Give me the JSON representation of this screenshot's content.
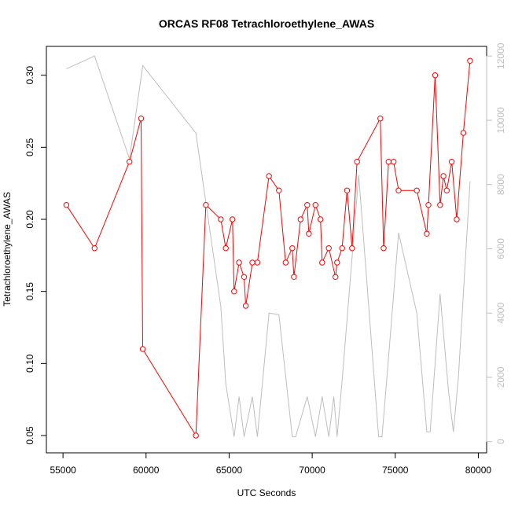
{
  "chart_data": {
    "type": "line",
    "title": "ORCAS RF08 Tetrachloroethylene_AWAS",
    "xlabel": "UTC Seconds",
    "ylabel": "Tetrachloroethylene_AWAS",
    "xlim": [
      54000,
      80500
    ],
    "ylim": [
      0.038,
      0.32
    ],
    "xticks": [
      55000,
      60000,
      65000,
      70000,
      75000,
      80000
    ],
    "xtick_labels": [
      "55000",
      "60000",
      "65000",
      "70000",
      "75000",
      "80000"
    ],
    "yticks": [
      0.05,
      0.1,
      0.15,
      0.2,
      0.25,
      0.3
    ],
    "ytick_labels": [
      "0.05",
      "0.10",
      "0.15",
      "0.20",
      "0.25",
      "0.30"
    ],
    "y2lim": [
      -350,
      12300
    ],
    "y2ticks": [
      0,
      2000,
      4000,
      6000,
      8000,
      10000,
      12000
    ],
    "y2tick_labels": [
      "0",
      "2000",
      "4000",
      "6000",
      "8000",
      "10000",
      "12000"
    ],
    "colors": {
      "primary": "#ff0000",
      "secondary": "#bebebe",
      "axis": "#000000"
    },
    "series": [
      {
        "axis": "left",
        "style": "line+points",
        "x": [
          55200,
          56900,
          59000,
          59700,
          59800,
          63000,
          63600,
          64500,
          64800,
          65200,
          65300,
          65600,
          65900,
          66000,
          66400,
          66700,
          67400,
          68000,
          68400,
          68800,
          68900,
          69300,
          69700,
          69800,
          70200,
          70500,
          70600,
          71000,
          71400,
          71500,
          71800,
          72100,
          72400,
          72700,
          74100,
          74300,
          74600,
          74900,
          75200,
          76300,
          76900,
          77000,
          77400,
          77700,
          77900,
          78100,
          78400,
          78700,
          79100,
          79500
        ],
        "y": [
          0.21,
          0.18,
          0.24,
          0.27,
          0.11,
          0.05,
          0.21,
          0.2,
          0.18,
          0.2,
          0.15,
          0.17,
          0.16,
          0.14,
          0.17,
          0.17,
          0.23,
          0.22,
          0.17,
          0.18,
          0.16,
          0.2,
          0.21,
          0.19,
          0.21,
          0.2,
          0.17,
          0.18,
          0.16,
          0.17,
          0.18,
          0.22,
          0.18,
          0.24,
          0.27,
          0.18,
          0.24,
          0.24,
          0.22,
          0.22,
          0.19,
          0.21,
          0.3,
          0.21,
          0.23,
          0.22,
          0.24,
          0.2,
          0.26,
          0.31
        ]
      },
      {
        "axis": "right",
        "style": "line",
        "x": [
          55200,
          56900,
          59000,
          59800,
          63000,
          64500,
          64800,
          65300,
          65600,
          65900,
          66400,
          66700,
          67400,
          68000,
          68800,
          69000,
          69700,
          70200,
          70600,
          71000,
          71300,
          71500,
          71800,
          72800,
          74000,
          74200,
          74500,
          75200,
          76300,
          76900,
          77100,
          77700,
          78200,
          78500,
          78800,
          79500
        ],
        "y": [
          11600,
          12000,
          8800,
          11700,
          9600,
          4200,
          1800,
          150,
          1400,
          150,
          1400,
          150,
          4000,
          3950,
          150,
          150,
          1400,
          150,
          1400,
          150,
          1400,
          150,
          1900,
          8300,
          150,
          150,
          2000,
          6500,
          4000,
          300,
          300,
          4600,
          1600,
          300,
          2000,
          8100
        ]
      }
    ]
  }
}
